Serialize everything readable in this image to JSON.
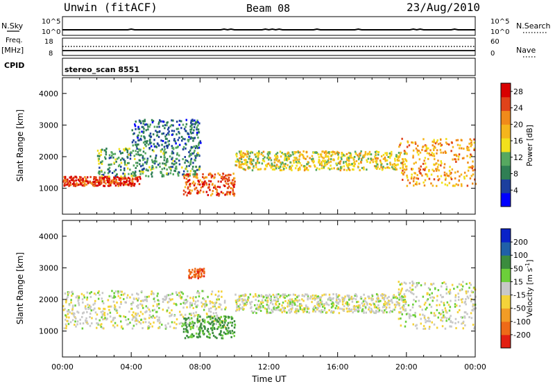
{
  "header": {
    "station": "Unwin (fitACF)",
    "beam": "Beam 08",
    "date": "23/Aug/2010"
  },
  "noise_panel": {
    "left_label": "N.Sky",
    "right_label": "N.Search",
    "left_ticks": [
      "10^5",
      "10^0"
    ],
    "right_ticks": [
      "10^5",
      "10^0"
    ]
  },
  "freq_panel": {
    "left_label_1": "Freq.",
    "left_label_2": "[MHz]",
    "right_label": "Nave",
    "left_ticks": [
      "18",
      "8"
    ],
    "right_ticks": [
      "60",
      "0"
    ]
  },
  "cpid": {
    "label": "CPID",
    "program": "stereo_scan 8551"
  },
  "colors": {
    "power": [
      "#0000ff",
      "#1c3f9e",
      "#2f7f54",
      "#56a860",
      "#f2e11c",
      "#f5b51c",
      "#f08a1a",
      "#e0431a",
      "#d80000"
    ],
    "velocity": [
      "#0a22c8",
      "#2060a8",
      "#3b8c3e",
      "#6ccf3a",
      "#c8c8c8",
      "#f4d33a",
      "#f29c26",
      "#ee6a18",
      "#e21f12"
    ]
  },
  "chart_data": [
    {
      "type": "heatmap",
      "title": "",
      "xlabel": "",
      "ylabel": "Slant Range [km]",
      "x_ticks": [
        "00:00",
        "04:00",
        "08:00",
        "12:00",
        "16:00",
        "20:00",
        "00:00"
      ],
      "xlim_hours": [
        0,
        24
      ],
      "ylim": [
        180,
        4500
      ],
      "y_ticks": [
        1000,
        2000,
        3000,
        4000
      ],
      "colorbar": {
        "label": "Power [dB]",
        "ticks": [
          4,
          8,
          12,
          16,
          20,
          24,
          28
        ],
        "range": [
          0,
          30
        ]
      },
      "features": [
        {
          "name": "E-region band",
          "x_hours": [
            0,
            4.5
          ],
          "slant_range_km": [
            1100,
            1400
          ],
          "value": 26
        },
        {
          "name": "rising band",
          "x_hours": [
            2,
            8
          ],
          "slant_range_km": [
            1400,
            2300
          ],
          "value": 10
        },
        {
          "name": "pre-midnight patch",
          "x_hours": [
            7,
            10
          ],
          "slant_range_km": [
            800,
            1500
          ],
          "value": 24
        },
        {
          "name": "scattered patch",
          "x_hours": [
            4,
            8
          ],
          "slant_range_km": [
            2300,
            3200
          ],
          "value": 7
        },
        {
          "name": "arc",
          "x_hours": [
            10,
            20
          ],
          "slant_range_km": [
            1600,
            2200
          ],
          "value": 16
        },
        {
          "name": "dawn band",
          "x_hours": [
            19.5,
            24
          ],
          "slant_range_km": [
            1100,
            2600
          ],
          "value": 20
        }
      ]
    },
    {
      "type": "heatmap",
      "title": "",
      "xlabel": "Time UT",
      "ylabel": "Slant Range [km]",
      "x_ticks": [
        "00:00",
        "04:00",
        "08:00",
        "12:00",
        "16:00",
        "20:00",
        "00:00"
      ],
      "xlim_hours": [
        0,
        24
      ],
      "ylim": [
        180,
        4500
      ],
      "y_ticks": [
        1000,
        2000,
        3000,
        4000
      ],
      "colorbar": {
        "label": "Velocity [m s-1]",
        "ticks": [
          200,
          100,
          50,
          15,
          -15,
          -50,
          -100,
          -200
        ],
        "range": [
          -250,
          250
        ]
      },
      "features": [
        {
          "name": "ground scatter band",
          "x_hours": [
            0,
            9.5
          ],
          "slant_range_km": [
            1100,
            2300
          ],
          "value": 0
        },
        {
          "name": "positive velocity patch",
          "x_hours": [
            7,
            10
          ],
          "slant_range_km": [
            800,
            1500
          ],
          "value": 60
        },
        {
          "name": "negative patch",
          "x_hours": [
            7.3,
            8.2
          ],
          "slant_range_km": [
            2700,
            3000
          ],
          "value": -180
        },
        {
          "name": "arc",
          "x_hours": [
            10,
            20
          ],
          "slant_range_km": [
            1600,
            2200
          ],
          "value": 0
        },
        {
          "name": "dawn band",
          "x_hours": [
            19.5,
            24
          ],
          "slant_range_km": [
            1100,
            2600
          ],
          "value": 0
        }
      ]
    }
  ]
}
